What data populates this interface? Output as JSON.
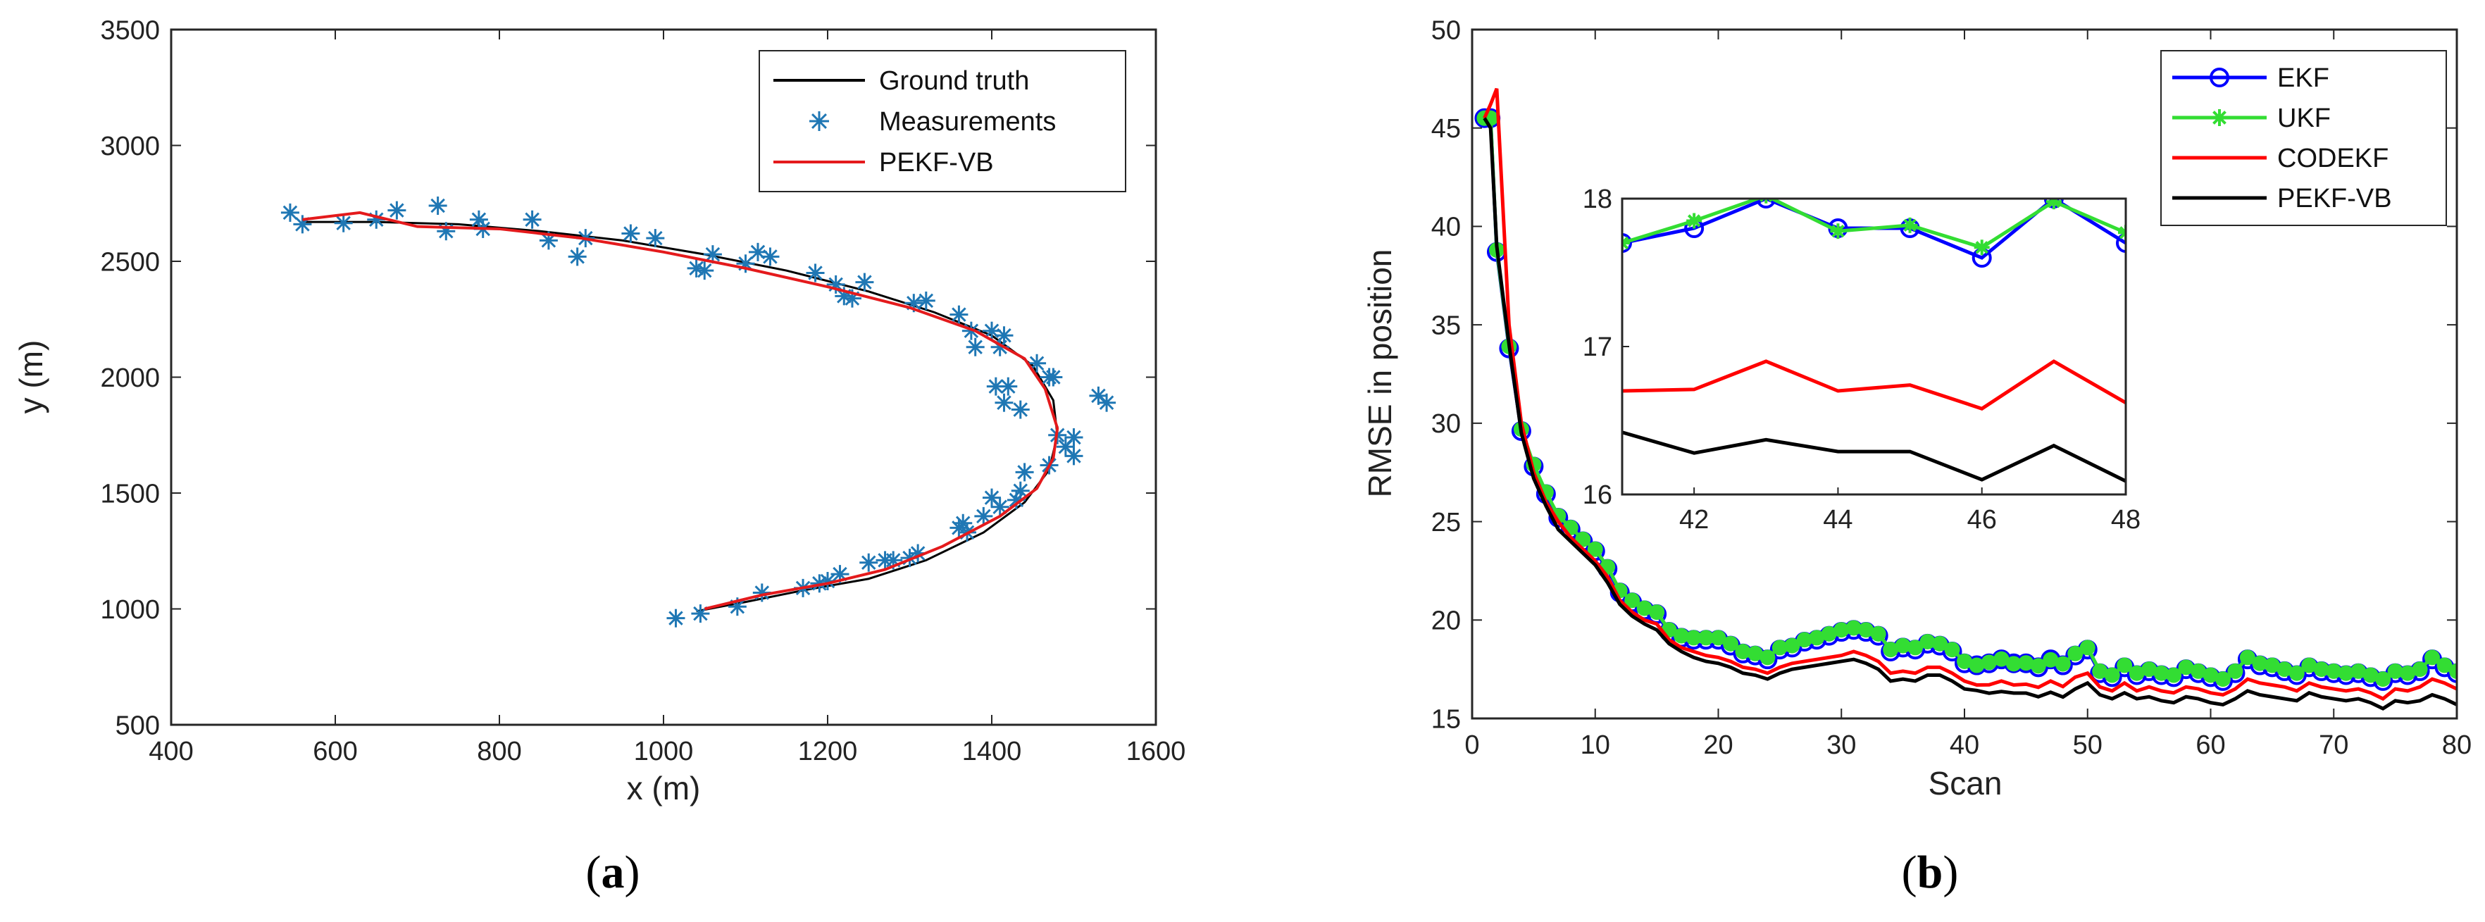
{
  "chart_data": [
    {
      "type": "line",
      "panel": "a",
      "caption_open": "(",
      "caption_letter": "a",
      "caption_close": ")",
      "xlabel": "x (m)",
      "ylabel": "y (m)",
      "xlim": [
        400,
        1600
      ],
      "ylim": [
        500,
        3500
      ],
      "xticks": [
        400,
        600,
        800,
        1000,
        1200,
        1400,
        1600
      ],
      "yticks": [
        500,
        1000,
        1500,
        2000,
        2500,
        3000,
        3500
      ],
      "legend_position": "top-right",
      "series": [
        {
          "name": "Ground truth",
          "color": "#000000",
          "style": "line",
          "x": [
            560,
            650,
            750,
            850,
            950,
            1050,
            1150,
            1250,
            1330,
            1400,
            1450,
            1475,
            1480,
            1470,
            1440,
            1390,
            1320,
            1250,
            1170,
            1100,
            1040
          ],
          "y": [
            2670,
            2670,
            2660,
            2630,
            2590,
            2530,
            2460,
            2370,
            2280,
            2180,
            2050,
            1900,
            1750,
            1600,
            1460,
            1330,
            1210,
            1130,
            1080,
            1030,
            990
          ]
        },
        {
          "name": "Measurements",
          "color": "#1f77b4",
          "style": "markers",
          "marker": "asterisk",
          "x": [
            545,
            560,
            610,
            650,
            675,
            725,
            735,
            775,
            780,
            840,
            860,
            895,
            905,
            960,
            990,
            1040,
            1050,
            1060,
            1100,
            1115,
            1130,
            1185,
            1210,
            1220,
            1230,
            1245,
            1305,
            1320,
            1360,
            1375,
            1380,
            1400,
            1410,
            1415,
            1455,
            1475,
            1420,
            1405,
            1415,
            1435,
            1470,
            1480,
            1500,
            1500,
            1530,
            1540,
            1490,
            1470,
            1440,
            1435,
            1430,
            1400,
            1410,
            1390,
            1365,
            1360,
            1370,
            1310,
            1300,
            1280,
            1270,
            1250,
            1215,
            1200,
            1190,
            1170,
            1120,
            1090,
            1045,
            1015
          ],
          "y": [
            2710,
            2660,
            2665,
            2680,
            2720,
            2740,
            2630,
            2680,
            2640,
            2680,
            2590,
            2520,
            2600,
            2620,
            2600,
            2470,
            2460,
            2530,
            2490,
            2540,
            2520,
            2450,
            2400,
            2350,
            2340,
            2410,
            2320,
            2330,
            2270,
            2200,
            2130,
            2200,
            2130,
            2180,
            2060,
            2000,
            1960,
            1960,
            1890,
            1860,
            2000,
            1750,
            1740,
            1660,
            1920,
            1890,
            1700,
            1620,
            1590,
            1510,
            1470,
            1480,
            1440,
            1400,
            1370,
            1350,
            1330,
            1240,
            1220,
            1210,
            1210,
            1200,
            1150,
            1120,
            1110,
            1090,
            1070,
            1010,
            980,
            960
          ]
        },
        {
          "name": "PEKF-VB",
          "color": "#e41a1c",
          "style": "line",
          "x": [
            560,
            630,
            700,
            800,
            900,
            1000,
            1100,
            1200,
            1300,
            1380,
            1440,
            1465,
            1480,
            1475,
            1455,
            1410,
            1340,
            1270,
            1200,
            1120,
            1050
          ],
          "y": [
            2680,
            2710,
            2650,
            2640,
            2600,
            2540,
            2470,
            2390,
            2300,
            2200,
            2080,
            1950,
            1780,
            1650,
            1520,
            1400,
            1270,
            1170,
            1110,
            1060,
            1000
          ]
        }
      ]
    },
    {
      "type": "line",
      "panel": "b",
      "caption_open": "(",
      "caption_letter": "b",
      "caption_close": ")",
      "xlabel": "Scan",
      "ylabel": "RMSE in position",
      "xlim": [
        0,
        80
      ],
      "ylim": [
        15,
        50
      ],
      "xticks": [
        0,
        10,
        20,
        30,
        40,
        50,
        60,
        70,
        80
      ],
      "yticks": [
        15,
        20,
        25,
        30,
        35,
        40,
        45,
        50
      ],
      "legend_position": "top-right",
      "x": [
        1,
        1.5,
        2,
        3,
        4,
        5,
        6,
        7,
        8,
        9,
        10,
        11,
        12,
        13,
        14,
        15,
        16,
        17,
        18,
        19,
        20,
        21,
        22,
        23,
        24,
        25,
        26,
        27,
        28,
        29,
        30,
        31,
        32,
        33,
        34,
        35,
        36,
        37,
        38,
        39,
        40,
        41,
        42,
        43,
        44,
        45,
        46,
        47,
        48,
        49,
        50,
        51,
        52,
        53,
        54,
        55,
        56,
        57,
        58,
        59,
        60,
        61,
        62,
        63,
        64,
        65,
        66,
        67,
        68,
        69,
        70,
        71,
        72,
        73,
        74,
        75,
        76,
        77,
        78,
        79,
        80
      ],
      "series": [
        {
          "name": "EKF",
          "color": "#0000ff",
          "marker": "circle",
          "values": [
            45.5,
            45.5,
            38.7,
            33.8,
            29.6,
            27.8,
            26.4,
            25.2,
            24.6,
            24.0,
            23.5,
            22.6,
            21.4,
            20.9,
            20.5,
            20.3,
            19.4,
            19.1,
            19.0,
            19.0,
            19.0,
            18.7,
            18.3,
            18.2,
            18.0,
            18.5,
            18.6,
            18.9,
            19.0,
            19.2,
            19.4,
            19.5,
            19.4,
            19.2,
            18.4,
            18.6,
            18.5,
            18.8,
            18.7,
            18.4,
            17.8,
            17.7,
            17.8,
            18.0,
            17.8,
            17.8,
            17.6,
            18.0,
            17.7,
            18.2,
            18.5,
            17.3,
            17.1,
            17.6,
            17.2,
            17.4,
            17.2,
            17.1,
            17.5,
            17.3,
            17.1,
            16.9,
            17.3,
            18.0,
            17.7,
            17.6,
            17.4,
            17.2,
            17.6,
            17.4,
            17.3,
            17.2,
            17.3,
            17.1,
            16.9,
            17.3,
            17.2,
            17.4,
            18.0,
            17.6,
            17.3
          ]
        },
        {
          "name": "UKF",
          "color": "#33dd33",
          "marker": "asterisk",
          "values": [
            45.5,
            45.5,
            38.8,
            33.9,
            29.7,
            27.9,
            26.5,
            25.3,
            24.7,
            24.1,
            23.6,
            22.7,
            21.5,
            21.0,
            20.6,
            20.4,
            19.5,
            19.2,
            19.1,
            19.1,
            19.1,
            18.8,
            18.4,
            18.3,
            18.1,
            18.6,
            18.7,
            19.0,
            19.1,
            19.3,
            19.5,
            19.6,
            19.5,
            19.3,
            18.5,
            18.7,
            18.6,
            18.9,
            18.8,
            18.5,
            17.9,
            17.7,
            17.85,
            18.02,
            17.78,
            17.82,
            17.67,
            17.98,
            17.77,
            18.3,
            18.6,
            17.4,
            17.2,
            17.7,
            17.3,
            17.5,
            17.3,
            17.2,
            17.6,
            17.4,
            17.2,
            17.0,
            17.4,
            18.1,
            17.8,
            17.7,
            17.5,
            17.3,
            17.7,
            17.5,
            17.4,
            17.3,
            17.4,
            17.2,
            17.0,
            17.4,
            17.3,
            17.5,
            18.1,
            17.7,
            17.4
          ]
        },
        {
          "name": "CODEKF",
          "color": "#ff0000",
          "values": [
            45.5,
            46.2,
            47.0,
            35.0,
            30.0,
            27.5,
            26.0,
            25.0,
            24.2,
            23.6,
            23.0,
            22.2,
            21.0,
            20.4,
            20.0,
            19.8,
            19.0,
            18.6,
            18.4,
            18.2,
            18.1,
            17.9,
            17.6,
            17.5,
            17.3,
            17.6,
            17.8,
            17.9,
            18.0,
            18.1,
            18.2,
            18.4,
            18.2,
            17.9,
            17.3,
            17.4,
            17.3,
            17.6,
            17.6,
            17.3,
            16.9,
            16.7,
            16.71,
            16.9,
            16.7,
            16.74,
            16.58,
            16.9,
            16.62,
            17.1,
            17.3,
            16.6,
            16.4,
            16.8,
            16.4,
            16.6,
            16.4,
            16.3,
            16.6,
            16.5,
            16.3,
            16.2,
            16.5,
            17.0,
            16.8,
            16.7,
            16.6,
            16.4,
            16.8,
            16.6,
            16.5,
            16.4,
            16.5,
            16.3,
            16.0,
            16.5,
            16.4,
            16.6,
            17.0,
            16.8,
            16.5
          ]
        },
        {
          "name": "PEKF-VB",
          "color": "#000000",
          "values": [
            45.5,
            45.0,
            39.0,
            34.0,
            29.5,
            27.2,
            25.8,
            24.6,
            24.0,
            23.4,
            22.8,
            21.9,
            20.8,
            20.2,
            19.8,
            19.5,
            18.8,
            18.4,
            18.1,
            17.9,
            17.8,
            17.6,
            17.3,
            17.2,
            17.0,
            17.3,
            17.5,
            17.6,
            17.7,
            17.8,
            17.9,
            18.0,
            17.8,
            17.5,
            16.9,
            17.0,
            16.9,
            17.2,
            17.2,
            16.9,
            16.5,
            16.42,
            16.28,
            16.37,
            16.29,
            16.29,
            16.1,
            16.33,
            16.09,
            16.5,
            16.8,
            16.2,
            16.0,
            16.3,
            16.0,
            16.1,
            15.9,
            15.8,
            16.1,
            16.0,
            15.8,
            15.7,
            16.0,
            16.4,
            16.2,
            16.1,
            16.0,
            15.9,
            16.3,
            16.1,
            16.0,
            15.9,
            16.0,
            15.8,
            15.5,
            15.9,
            15.8,
            15.9,
            16.2,
            16.0,
            15.7
          ]
        }
      ],
      "inset": {
        "xlim": [
          41,
          48
        ],
        "ylim": [
          16,
          18
        ],
        "xticks": [
          42,
          44,
          46,
          48
        ],
        "yticks": [
          16,
          17,
          18
        ],
        "x": [
          41,
          42,
          43,
          44,
          45,
          46,
          47,
          48
        ]
      }
    }
  ]
}
